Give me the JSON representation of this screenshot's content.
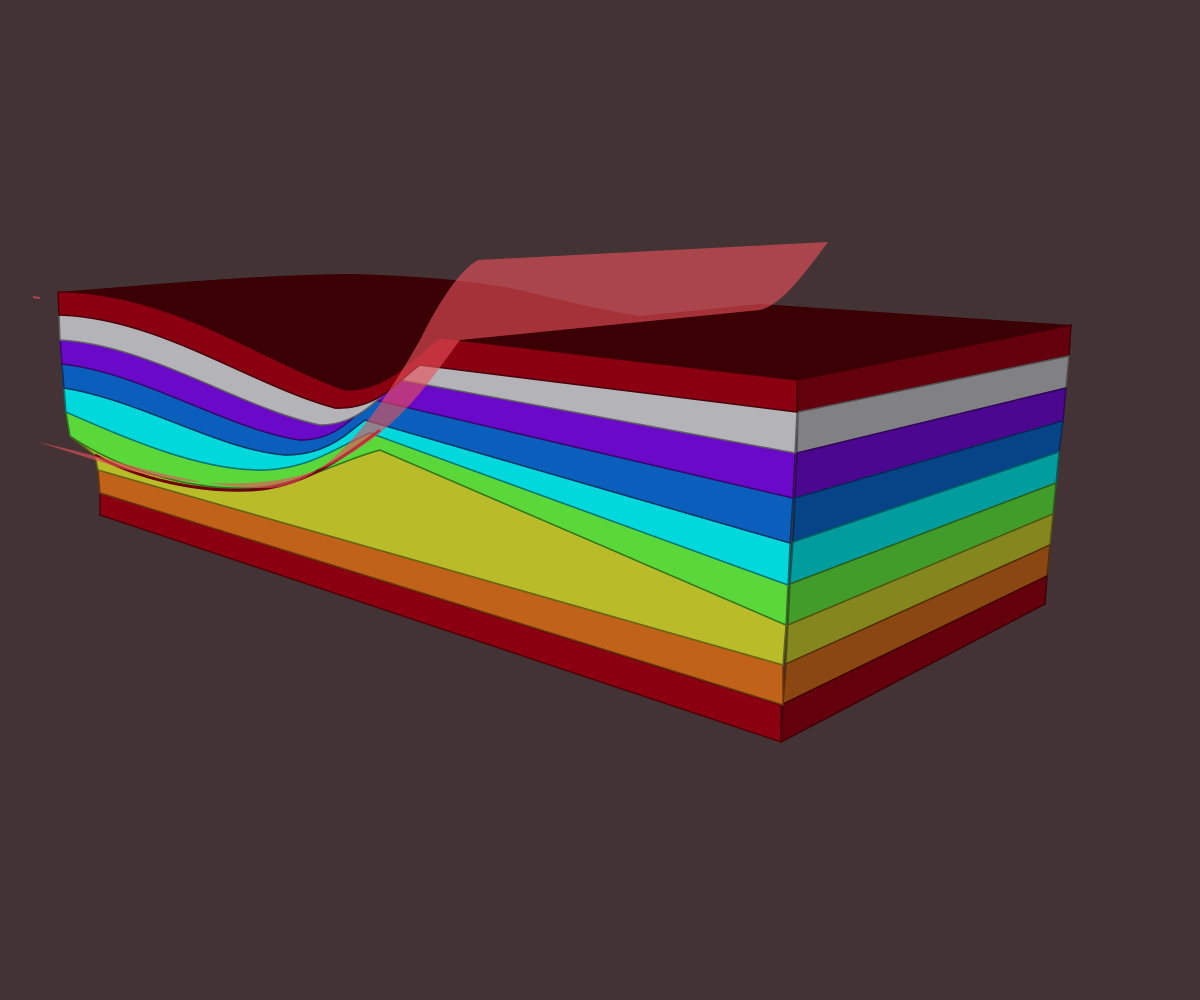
{
  "scene": {
    "background": "#443335",
    "layers": [
      {
        "name": "layer-1",
        "color": "#8a0010"
      },
      {
        "name": "layer-2",
        "color": "#b3b3b8"
      },
      {
        "name": "layer-3",
        "color": "#6a0ac8"
      },
      {
        "name": "layer-4",
        "color": "#0a5fbc"
      },
      {
        "name": "layer-5",
        "color": "#00d8dc"
      },
      {
        "name": "layer-6",
        "color": "#5ad83a"
      },
      {
        "name": "layer-7",
        "color": "#b8bc28"
      },
      {
        "name": "layer-8",
        "color": "#c06218"
      },
      {
        "name": "layer-9",
        "color": "#8a0010"
      }
    ],
    "top_surface_color": "#3a0004",
    "fault_plane_color": "#e8505a"
  }
}
